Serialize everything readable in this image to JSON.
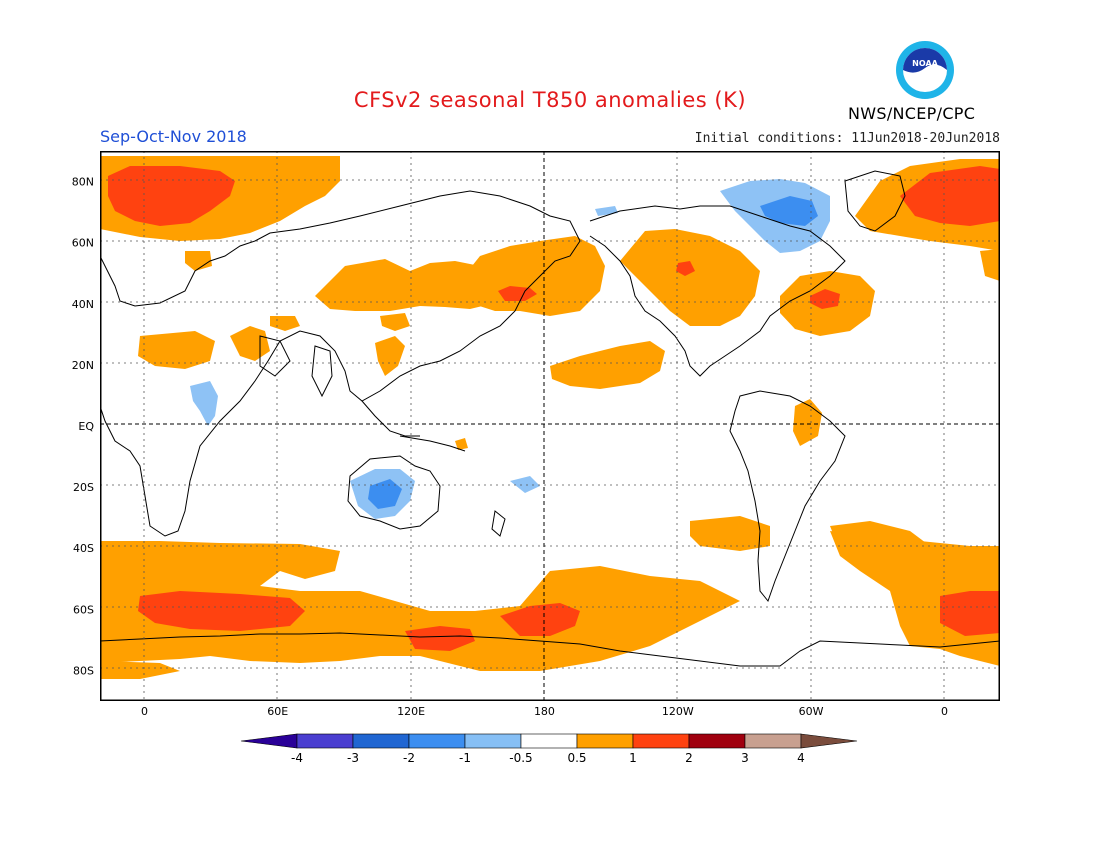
{
  "title": "CFSv2 seasonal T850 anomalies (K)",
  "season": "Sep-Oct-Nov 2018",
  "initial_conditions": "Initial conditions: 11Jun2018-20Jun2018",
  "agency": "NWS/NCEP/CPC",
  "logo_text": "NOAA",
  "map": {
    "lat_labels": [
      "80N",
      "60N",
      "40N",
      "20N",
      "EQ",
      "20S",
      "40S",
      "60S",
      "80S"
    ],
    "lon_labels": [
      "0",
      "60E",
      "120E",
      "180",
      "120W",
      "60W",
      "0"
    ],
    "lat_values": [
      80,
      60,
      40,
      20,
      0,
      -20,
      -40,
      -60,
      -80
    ],
    "lon_values": [
      0,
      60,
      120,
      180,
      240,
      300,
      360
    ],
    "colors": {
      "pos_05_1": "#ffa000",
      "pos_1_2": "#ff4210",
      "neg_05_1": "#8ec2f5",
      "land_outline": "#000000",
      "grid": "#555555"
    },
    "anomaly_regions": [
      {
        "name": "N Atlantic/Europe warm",
        "level": "1-2",
        "lon_center": 15,
        "lat_center": 73
      },
      {
        "name": "Arctic Canada cold",
        "level": "-0.5 to -1",
        "lon_center": 290,
        "lat_center": 67
      },
      {
        "name": "N Pacific warm",
        "level": "0.5-1",
        "lon_center": 175,
        "lat_center": 45
      },
      {
        "name": "NW Atlantic warm",
        "level": "1-2",
        "lon_center": 302,
        "lat_center": 40
      },
      {
        "name": "Southern Ocean warm",
        "level": "1-2",
        "lon_center": 30,
        "lat_center": -60
      }
    ]
  },
  "colorbar": {
    "labels": [
      "-4",
      "-3",
      "-2",
      "-1",
      "-0.5",
      "0.5",
      "1",
      "2",
      "3",
      "4"
    ],
    "colors": [
      "#2a0098",
      "#4a3ed0",
      "#2066d2",
      "#3c8ef0",
      "#86bff5",
      "#ffffff",
      "#ffa000",
      "#ff4210",
      "#a0000f",
      "#c8a090",
      "#7a4c3c"
    ]
  }
}
